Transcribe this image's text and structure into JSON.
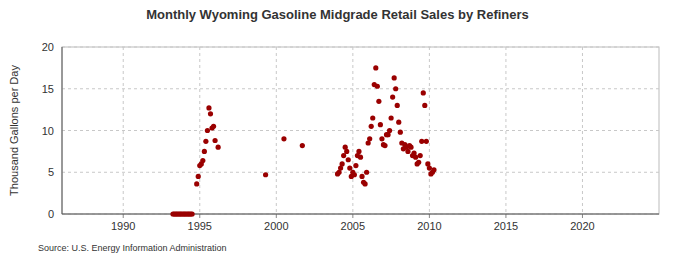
{
  "chart_data": {
    "type": "scatter",
    "title": "Monthly Wyoming Gasoline Midgrade Retail Sales by Refiners",
    "y_label": "Thousand Gallons per Day",
    "source": "Source: U.S. Energy Information Administration",
    "xlim": [
      1986,
      2025
    ],
    "xticks": [
      1990,
      1995,
      2000,
      2005,
      2010,
      2015,
      2020
    ],
    "ylim": [
      0,
      20
    ],
    "yticks": [
      0,
      5,
      10,
      15,
      20
    ],
    "grid": true,
    "marker": "circle",
    "series": [
      {
        "color": "#9a0000",
        "x": [
          1993.25,
          1993.33,
          1993.42,
          1993.5,
          1993.58,
          1993.67,
          1993.75,
          1993.83,
          1993.92,
          1994.0,
          1994.08,
          1994.17,
          1994.25,
          1994.33,
          1994.42,
          1994.5,
          1994.8,
          1994.9,
          1995.0,
          1995.1,
          1995.2,
          1995.3,
          1995.4,
          1995.5,
          1995.6,
          1995.7,
          1995.8,
          1995.9,
          1996.0,
          1996.2,
          1999.3,
          2000.5,
          2001.7,
          2004.0,
          2004.1,
          2004.2,
          2004.3,
          2004.4,
          2004.5,
          2004.6,
          2004.7,
          2004.8,
          2004.9,
          2005.0,
          2005.1,
          2005.2,
          2005.3,
          2005.4,
          2005.5,
          2005.6,
          2005.7,
          2005.8,
          2005.9,
          2006.0,
          2006.1,
          2006.2,
          2006.3,
          2006.4,
          2006.5,
          2006.6,
          2006.7,
          2006.8,
          2006.9,
          2007.0,
          2007.1,
          2007.2,
          2007.3,
          2007.4,
          2007.5,
          2007.6,
          2007.7,
          2007.8,
          2007.9,
          2008.0,
          2008.1,
          2008.2,
          2008.3,
          2008.4,
          2008.5,
          2008.6,
          2008.7,
          2008.8,
          2008.9,
          2009.0,
          2009.1,
          2009.2,
          2009.3,
          2009.4,
          2009.5,
          2009.6,
          2009.7,
          2009.8,
          2009.9,
          2010.0,
          2010.1,
          2010.2,
          2010.3
        ],
        "values": [
          0,
          0,
          0,
          0,
          0,
          0,
          0,
          0,
          0,
          0,
          0,
          0,
          0,
          0,
          0,
          0,
          3.6,
          4.5,
          5.8,
          6.0,
          6.4,
          7.5,
          8.7,
          10.0,
          12.7,
          12.0,
          10.3,
          10.5,
          8.8,
          8.0,
          4.7,
          9.0,
          8.2,
          4.8,
          5.0,
          5.5,
          6.0,
          7.0,
          8.0,
          7.5,
          6.5,
          5.5,
          4.5,
          5.0,
          4.7,
          5.8,
          7.0,
          7.5,
          6.8,
          4.5,
          3.8,
          3.6,
          5.0,
          8.5,
          9.0,
          10.5,
          11.5,
          15.5,
          17.5,
          15.3,
          13.5,
          10.7,
          9.0,
          8.3,
          8.2,
          9.5,
          9.5,
          10.0,
          11.5,
          14.0,
          16.3,
          15.0,
          13.0,
          11.0,
          9.8,
          8.5,
          7.8,
          8.3,
          8.0,
          7.5,
          8.2,
          8.0,
          7.0,
          7.3,
          6.8,
          6.0,
          6.2,
          7.0,
          8.7,
          14.5,
          13.0,
          8.7,
          6.0,
          5.5,
          4.8,
          5.0,
          5.3
        ]
      }
    ]
  }
}
